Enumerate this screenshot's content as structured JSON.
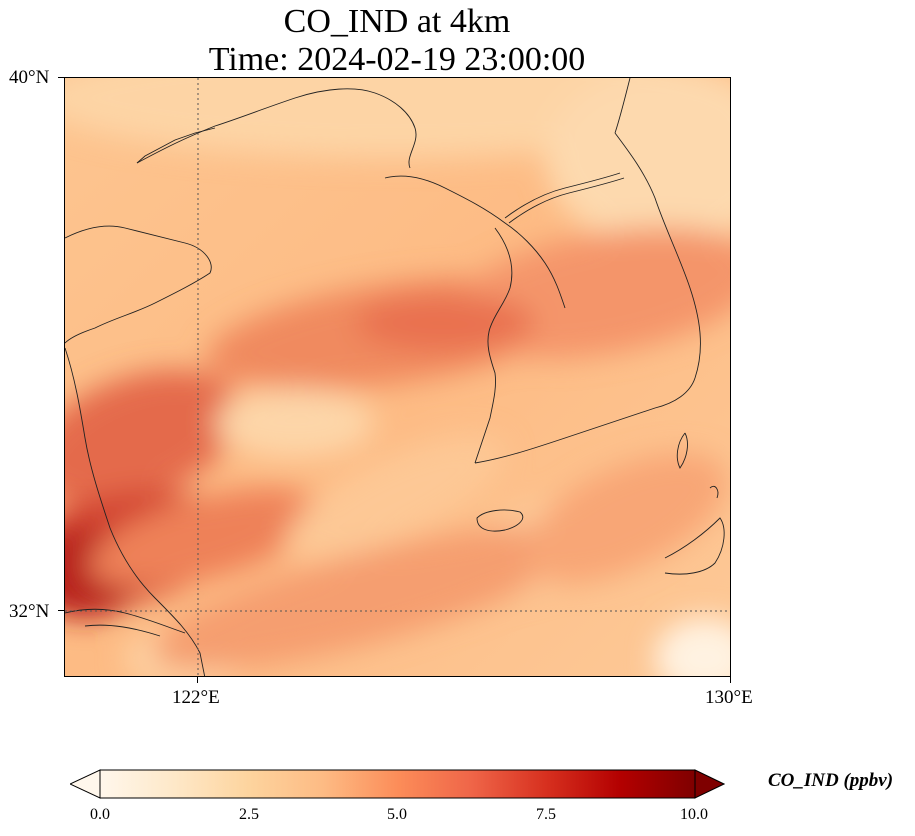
{
  "title": {
    "line1": "CO_IND at 4km",
    "line2": "Time: 2024-02-19 23:00:00"
  },
  "map": {
    "lat_labels": [
      "40°N",
      "32°N"
    ],
    "lon_labels": [
      "122°E",
      "130°E"
    ],
    "gridline_style": "dotted",
    "extent": {
      "lon_min": 120,
      "lon_max": 130,
      "lat_min": 31,
      "lat_max": 40
    },
    "field_description_colors": {
      "low": "#fff5eb",
      "mid": "#fdae6b",
      "high": "#7f0000"
    }
  },
  "colorbar": {
    "label": "CO_IND (ppbv)",
    "ticks": [
      "0.0",
      "2.5",
      "5.0",
      "7.5",
      "10.0"
    ],
    "range": [
      0,
      10
    ],
    "colormap": "OrRd",
    "extend": "both"
  }
}
